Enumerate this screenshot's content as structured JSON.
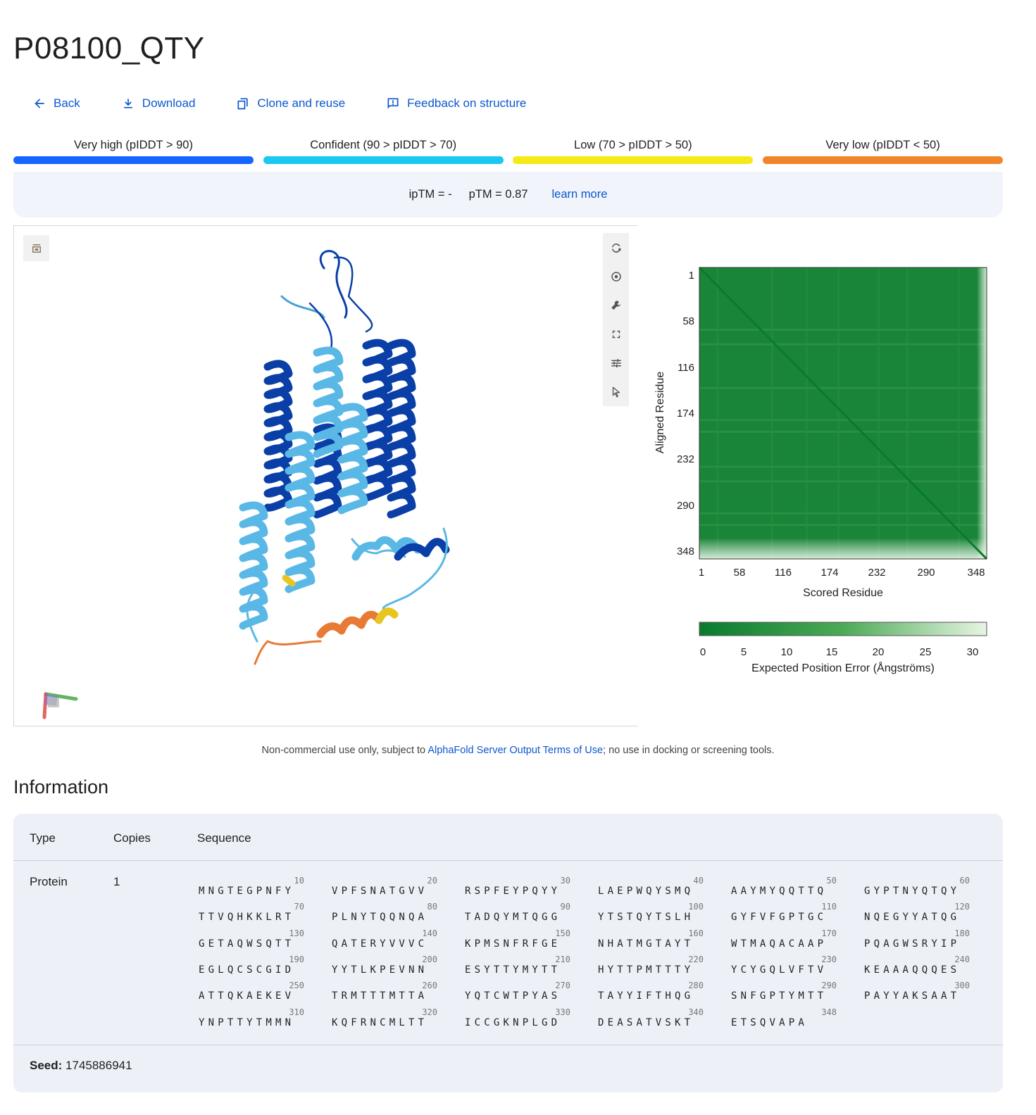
{
  "page": {
    "title": "P08100_QTY"
  },
  "actions": [
    {
      "label": "Back",
      "icon": "arrow-left-icon"
    },
    {
      "label": "Download",
      "icon": "download-icon"
    },
    {
      "label": "Clone and reuse",
      "icon": "copy-icon"
    },
    {
      "label": "Feedback on structure",
      "icon": "feedback-icon"
    }
  ],
  "plddt_legend": [
    {
      "label": "Very high (pIDDT > 90)",
      "color": "#1565ff"
    },
    {
      "label": "Confident (90 > pIDDT > 70)",
      "color": "#1ac8f0"
    },
    {
      "label": "Low (70 > pIDDT > 50)",
      "color": "#f5ea18"
    },
    {
      "label": "Very low (pIDDT < 50)",
      "color": "#f0852a"
    }
  ],
  "scores": {
    "iptm": "ipTM = -",
    "ptm": "pTM = 0.87",
    "learn_more": "learn more"
  },
  "viewer": {
    "tools": [
      "rotate-icon",
      "camera-icon",
      "wrench-icon",
      "fullscreen-icon",
      "settings-sliders-icon",
      "cursor-icon"
    ],
    "corner_button": "panel-toggle-icon"
  },
  "pae_chart": {
    "chart_data": {
      "type": "heatmap",
      "ylabel": "Aligned Residue",
      "xlabel": "Scored Residue",
      "x_ticks": [
        "1",
        "58",
        "116",
        "174",
        "232",
        "290",
        "348"
      ],
      "y_ticks": [
        "1",
        "58",
        "116",
        "174",
        "232",
        "290",
        "348"
      ],
      "colorbar_ticks": [
        "0",
        "5",
        "10",
        "15",
        "20",
        "25",
        "30"
      ],
      "colorbar_label": "Expected Position Error (Ångströms)",
      "color_min": "#0a7a2e",
      "color_max": "#e8f5e4",
      "range": [
        0,
        30
      ]
    }
  },
  "terms": {
    "prefix": "Non-commercial use only, subject to ",
    "link": "AlphaFold Server Output Terms of Use",
    "suffix": "; no use in docking or screening tools."
  },
  "information": {
    "heading": "Information",
    "columns": [
      "Type",
      "Copies",
      "Sequence"
    ],
    "row": {
      "type": "Protein",
      "copies": "1"
    },
    "sequence_chunks": [
      {
        "num": "10",
        "seq": "MNGTEGPNFY"
      },
      {
        "num": "20",
        "seq": "VPFSNATGVV"
      },
      {
        "num": "30",
        "seq": "RSPFEYPQYY"
      },
      {
        "num": "40",
        "seq": "LAEPWQYSMQ"
      },
      {
        "num": "50",
        "seq": "AAYMYQQTTQ"
      },
      {
        "num": "60",
        "seq": "GYPTNYQTQY"
      },
      {
        "num": "70",
        "seq": "TTVQHKKLRT"
      },
      {
        "num": "80",
        "seq": "PLNYTQQNQA"
      },
      {
        "num": "90",
        "seq": "TADQYMTQGG"
      },
      {
        "num": "100",
        "seq": "YTSTQYTSLH"
      },
      {
        "num": "110",
        "seq": "GYFVFGPTGC"
      },
      {
        "num": "120",
        "seq": "NQEGYYATQG"
      },
      {
        "num": "130",
        "seq": "GETAQWSQTT"
      },
      {
        "num": "140",
        "seq": "QATERYVVVC"
      },
      {
        "num": "150",
        "seq": "KPMSNFRFGE"
      },
      {
        "num": "160",
        "seq": "NHATMGTAYT"
      },
      {
        "num": "170",
        "seq": "WTMAQACAAP"
      },
      {
        "num": "180",
        "seq": "PQAGWSRYIP"
      },
      {
        "num": "190",
        "seq": "EGLQCSCGID"
      },
      {
        "num": "200",
        "seq": "YYTLKPEVNN"
      },
      {
        "num": "210",
        "seq": "ESYTTYMYTT"
      },
      {
        "num": "220",
        "seq": "HYTTPMTTTY"
      },
      {
        "num": "230",
        "seq": "YCYGQLVFTV"
      },
      {
        "num": "240",
        "seq": "KEAAAQQQES"
      },
      {
        "num": "250",
        "seq": "ATTQKAEKEV"
      },
      {
        "num": "260",
        "seq": "TRMTTTMTTA"
      },
      {
        "num": "270",
        "seq": "YQTCWTPYAS"
      },
      {
        "num": "280",
        "seq": "TAYYIFTHQG"
      },
      {
        "num": "290",
        "seq": "SNFGPTYMTT"
      },
      {
        "num": "300",
        "seq": "PAYYAKSAAT"
      },
      {
        "num": "310",
        "seq": "YNPTTYTMMN"
      },
      {
        "num": "320",
        "seq": "KQFRNCMLTT"
      },
      {
        "num": "330",
        "seq": "ICCGKNPLGD"
      },
      {
        "num": "340",
        "seq": "DEASATVSKT"
      },
      {
        "num": "348",
        "seq": "ETSQVAPA"
      }
    ],
    "seed_label": "Seed:",
    "seed_value": "1745886941"
  }
}
